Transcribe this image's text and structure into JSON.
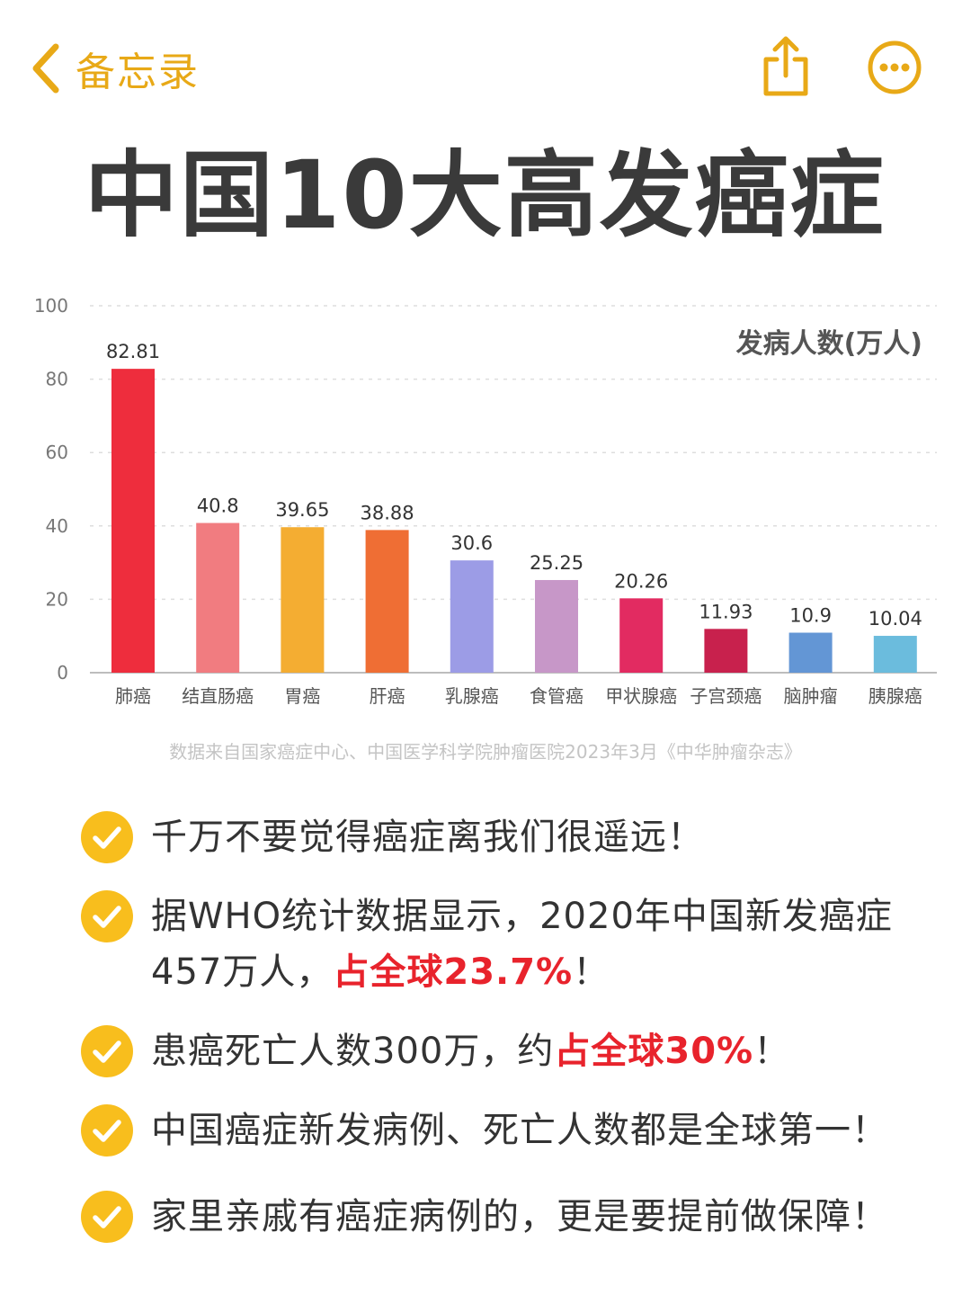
{
  "header": {
    "back_label": "备忘录",
    "back_icon": "chevron-left-icon",
    "share_icon": "share-icon",
    "more_icon": "more-icon",
    "accent_color": "#E8A917"
  },
  "title": "中国10大高发癌症",
  "chart_data": {
    "type": "bar",
    "ylabel": "发病人数(万人)",
    "ylim": [
      0,
      100
    ],
    "yticks": [
      0,
      20,
      40,
      60,
      80,
      100
    ],
    "grid": true,
    "categories": [
      "肺癌",
      "结直肠癌",
      "胃癌",
      "肝癌",
      "乳腺癌",
      "食管癌",
      "甲状腺癌",
      "子宫颈癌",
      "脑肿瘤",
      "胰腺癌"
    ],
    "values": [
      82.81,
      40.8,
      39.65,
      38.88,
      30.6,
      25.25,
      20.26,
      11.93,
      10.9,
      10.04
    ],
    "labels": [
      "82.81",
      "40.8",
      "39.65",
      "38.88",
      "30.6",
      "25.25",
      "20.26",
      "11.93",
      "10.9",
      "10.04"
    ],
    "colors": [
      "#EE2D3D",
      "#F17C80",
      "#F4AD32",
      "#EF6E34",
      "#9C9CE6",
      "#C797C8",
      "#E22B61",
      "#C8214D",
      "#6396D5",
      "#6BBCDD"
    ]
  },
  "source_note": "数据来自国家癌症中心、中国医学科学院肿瘤医院2023年3月《中华肿瘤杂志》",
  "bullets": [
    {
      "text": "千万不要觉得癌症离我们很遥远！",
      "highlight": "",
      "after": ""
    },
    {
      "text": "据WHO统计数据显示，2020年中国新发癌症457万人，",
      "highlight": "占全球23.7%",
      "after": "！"
    },
    {
      "text": "患癌死亡人数300万，约",
      "highlight": "占全球30%",
      "after": "！"
    },
    {
      "text": "中国癌症新发病例、死亡人数都是全球第一！",
      "highlight": "",
      "after": ""
    },
    {
      "text": "家里亲戚有癌症病例的，更是要提前做保障！",
      "highlight": "",
      "after": ""
    }
  ],
  "check_icon": "check-circle-icon",
  "highlight_color": "#E8232C"
}
